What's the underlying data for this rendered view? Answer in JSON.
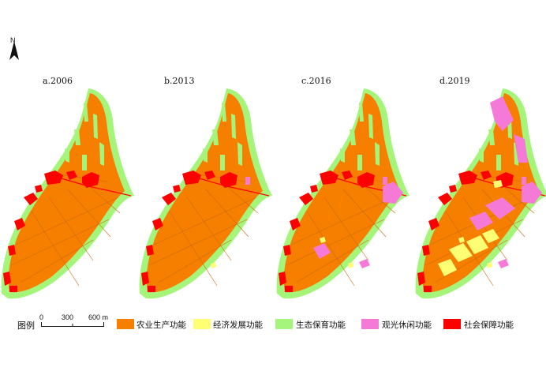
{
  "north": {
    "label": "N"
  },
  "panels": [
    {
      "label": "a.2006"
    },
    {
      "label": "b.2013"
    },
    {
      "label": "c.2016"
    },
    {
      "label": "d.2019"
    }
  ],
  "legend": {
    "title": "图例",
    "scale": {
      "ticks": [
        "0",
        "300",
        "600 m"
      ]
    },
    "items": [
      {
        "label": "农业生产功能",
        "color": "#f77f00"
      },
      {
        "label": "经济发展功能",
        "color": "#ffff73"
      },
      {
        "label": "生态保育功能",
        "color": "#a5f57a"
      },
      {
        "label": "观光休闲功能",
        "color": "#f57ad8"
      },
      {
        "label": "社会保障功能",
        "color": "#ff0000"
      }
    ]
  }
}
